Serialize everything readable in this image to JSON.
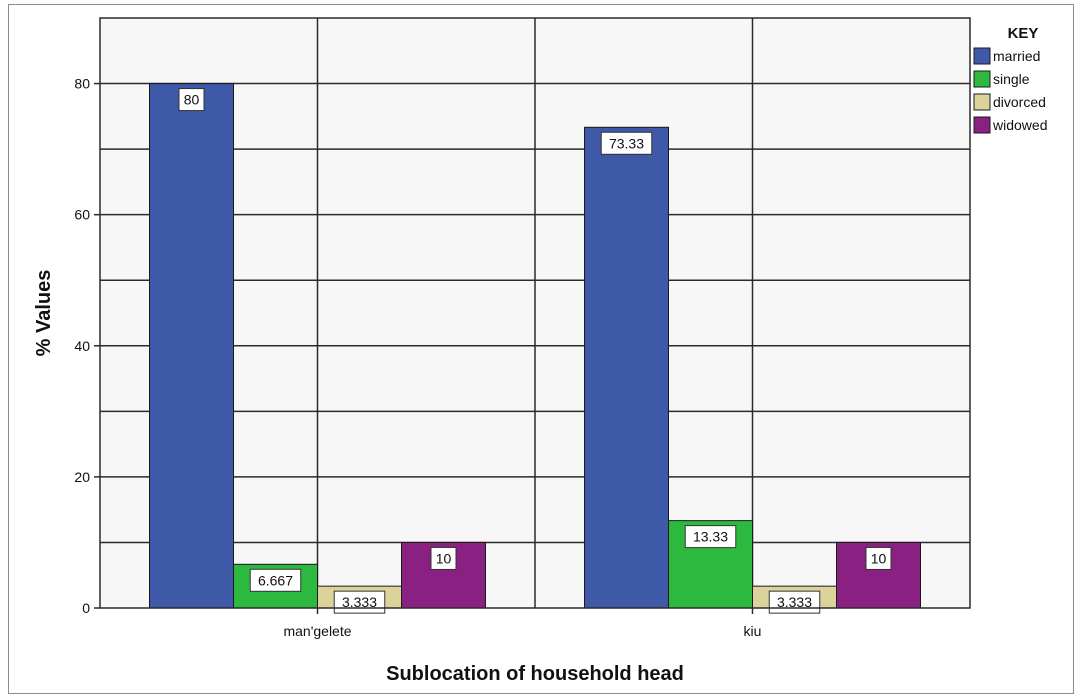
{
  "chart_data": {
    "type": "bar",
    "categories": [
      "man'gelete",
      "kiu"
    ],
    "series": [
      {
        "name": "married",
        "values": [
          80,
          73.33
        ],
        "labels": [
          "80",
          "73.33"
        ],
        "color": "#3f59a9"
      },
      {
        "name": "single",
        "values": [
          6.667,
          13.33
        ],
        "labels": [
          "6.667",
          "13.33"
        ],
        "color": "#2db93f"
      },
      {
        "name": "divorced",
        "values": [
          3.333,
          3.333
        ],
        "labels": [
          "3.333",
          "3.333"
        ],
        "color": "#dcd39b"
      },
      {
        "name": "widowed",
        "values": [
          10,
          10
        ],
        "labels": [
          "10",
          "10"
        ],
        "color": "#8a2182"
      }
    ],
    "xlabel": "Sublocation of household head",
    "ylabel": "% Values",
    "ylim": [
      0,
      90
    ],
    "yticks": [
      0,
      20,
      40,
      60,
      80
    ],
    "legend_title": "KEY",
    "legend_position": "right",
    "grid": true
  }
}
